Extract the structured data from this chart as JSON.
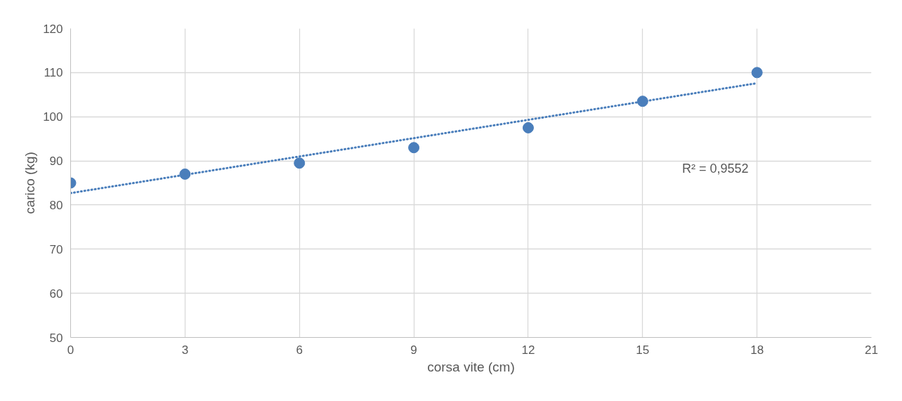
{
  "chart_data": {
    "type": "scatter",
    "xlabel": "corsa vite (cm)",
    "ylabel": "carico (kg)",
    "x": [
      0,
      3,
      6,
      9,
      12,
      15,
      18
    ],
    "series": [
      {
        "color": "#4a7ebb",
        "values": [
          85,
          87,
          89.5,
          93,
          97.5,
          103.5,
          110
        ],
        "marker": "circle"
      },
      {
        "type": "line",
        "color": "#4a7ebb",
        "x": [
          0,
          18
        ],
        "values": [
          82.7,
          107.6
        ],
        "line_style": "dotted",
        "marker": "none"
      }
    ],
    "annotations": [
      "R² = 0,9552"
    ],
    "xlim": [
      0,
      21
    ],
    "xticks": [
      0,
      3,
      6,
      9,
      12,
      15,
      18,
      21
    ],
    "ylim": [
      50,
      120
    ],
    "yticks": [
      50,
      60,
      70,
      80,
      90,
      100,
      110,
      120
    ],
    "grid": true
  }
}
